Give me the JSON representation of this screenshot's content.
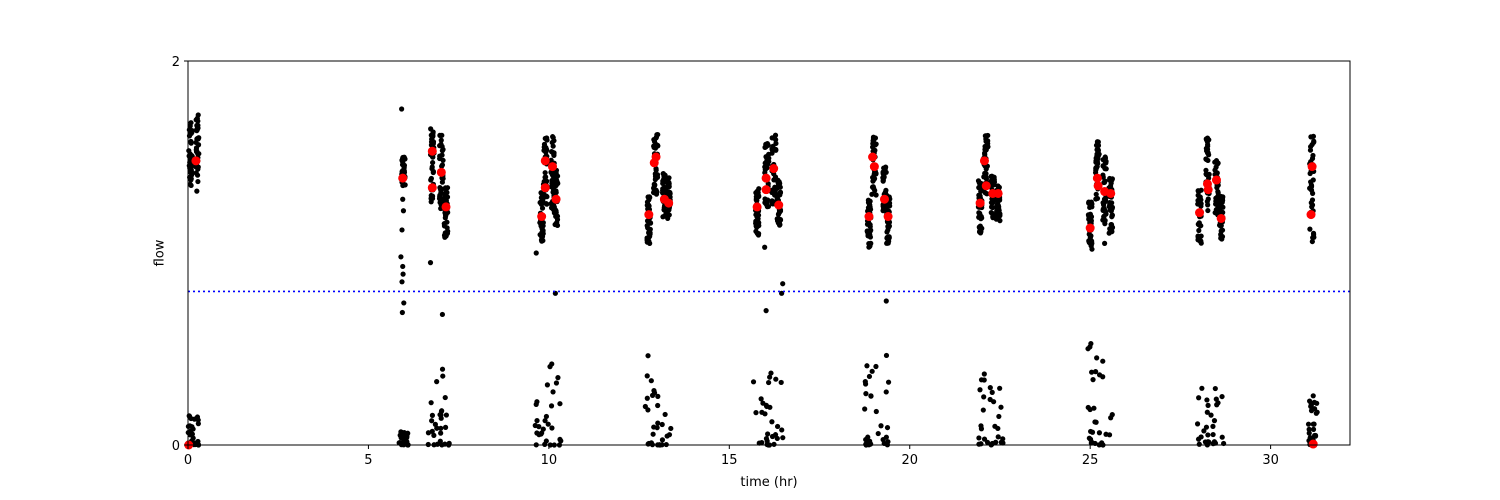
{
  "chart_data": {
    "type": "scatter",
    "xlabel": "time (hr)",
    "ylabel": "flow",
    "xlim": [
      0,
      32.2
    ],
    "ylim": [
      0,
      2
    ],
    "x_ticks": [
      0,
      5,
      10,
      15,
      20,
      25,
      30
    ],
    "y_ticks": [
      0,
      2
    ],
    "grid": false,
    "colors": {
      "raw": "#000000",
      "highlight": "#ff0000",
      "threshold": "#0000ff"
    },
    "threshold": {
      "y": 0.8,
      "style": "dotted"
    },
    "series": [
      {
        "kind": "raw",
        "clusters": [
          {
            "x": [
              0.02,
              0.12
            ],
            "y": [
              1.35,
              1.68
            ]
          },
          {
            "x": [
              0.22,
              0.3
            ],
            "y": [
              1.32,
              1.72
            ]
          },
          {
            "x": [
              5.92,
              6.02
            ],
            "y": [
              1.35,
              1.5
            ]
          },
          {
            "x": [
              6.72,
              6.82
            ],
            "y": [
              1.25,
              1.65
            ]
          },
          {
            "x": [
              6.97,
              7.07
            ],
            "y": [
              1.23,
              1.62
            ]
          },
          {
            "x": [
              7.1,
              7.2
            ],
            "y": [
              1.08,
              1.35
            ]
          },
          {
            "x": [
              9.75,
              9.85
            ],
            "y": [
              1.06,
              1.32
            ]
          },
          {
            "x": [
              9.85,
              9.95
            ],
            "y": [
              1.25,
              1.6
            ]
          },
          {
            "x": [
              10.05,
              10.15
            ],
            "y": [
              1.2,
              1.62
            ]
          },
          {
            "x": [
              10.15,
              10.25
            ],
            "y": [
              1.14,
              1.45
            ]
          },
          {
            "x": [
              12.72,
              12.82
            ],
            "y": [
              1.05,
              1.32
            ]
          },
          {
            "x": [
              12.9,
              13.02
            ],
            "y": [
              1.3,
              1.63
            ]
          },
          {
            "x": [
              13.15,
              13.25
            ],
            "y": [
              1.18,
              1.42
            ]
          },
          {
            "x": [
              13.27,
              13.37
            ],
            "y": [
              1.18,
              1.4
            ]
          },
          {
            "x": [
              15.72,
              15.82
            ],
            "y": [
              1.08,
              1.35
            ]
          },
          {
            "x": [
              15.98,
              16.1
            ],
            "y": [
              1.24,
              1.58
            ]
          },
          {
            "x": [
              16.18,
              16.3
            ],
            "y": [
              1.25,
              1.62
            ]
          },
          {
            "x": [
              16.32,
              16.42
            ],
            "y": [
              1.13,
              1.38
            ]
          },
          {
            "x": [
              18.82,
              18.92
            ],
            "y": [
              1.03,
              1.3
            ]
          },
          {
            "x": [
              18.95,
              19.07
            ],
            "y": [
              1.3,
              1.63
            ]
          },
          {
            "x": [
              19.25,
              19.35
            ],
            "y": [
              1.22,
              1.45
            ]
          },
          {
            "x": [
              19.35,
              19.45
            ],
            "y": [
              1.05,
              1.3
            ]
          },
          {
            "x": [
              21.9,
              22.0
            ],
            "y": [
              1.1,
              1.38
            ]
          },
          {
            "x": [
              22.05,
              22.17
            ],
            "y": [
              1.3,
              1.63
            ]
          },
          {
            "x": [
              22.25,
              22.35
            ],
            "y": [
              1.18,
              1.43
            ]
          },
          {
            "x": [
              22.4,
              22.5
            ],
            "y": [
              1.15,
              1.35
            ]
          },
          {
            "x": [
              24.95,
              25.05
            ],
            "y": [
              1.03,
              1.3
            ]
          },
          {
            "x": [
              25.15,
              25.25
            ],
            "y": [
              1.28,
              1.58
            ]
          },
          {
            "x": [
              25.35,
              25.45
            ],
            "y": [
              1.15,
              1.5
            ]
          },
          {
            "x": [
              25.52,
              25.62
            ],
            "y": [
              1.1,
              1.4
            ]
          },
          {
            "x": [
              27.98,
              28.08
            ],
            "y": [
              1.05,
              1.33
            ]
          },
          {
            "x": [
              28.2,
              28.3
            ],
            "y": [
              1.22,
              1.6
            ]
          },
          {
            "x": [
              28.45,
              28.55
            ],
            "y": [
              1.18,
              1.52
            ]
          },
          {
            "x": [
              28.58,
              28.68
            ],
            "y": [
              1.05,
              1.3
            ]
          },
          {
            "x": [
              31.08,
              31.2
            ],
            "y": [
              1.05,
              1.63
            ]
          }
        ],
        "singles": [
          {
            "x": 5.92,
            "y": 1.75
          },
          {
            "x": 5.95,
            "y": 1.28
          },
          {
            "x": 5.97,
            "y": 1.22
          },
          {
            "x": 5.93,
            "y": 1.12
          },
          {
            "x": 5.9,
            "y": 0.98
          },
          {
            "x": 5.95,
            "y": 0.93
          },
          {
            "x": 5.96,
            "y": 0.89
          },
          {
            "x": 5.93,
            "y": 0.85
          },
          {
            "x": 5.98,
            "y": 0.74
          },
          {
            "x": 5.94,
            "y": 0.69
          },
          {
            "x": 6.72,
            "y": 0.95
          },
          {
            "x": 7.05,
            "y": 0.68
          },
          {
            "x": 9.65,
            "y": 1.0
          },
          {
            "x": 10.18,
            "y": 0.79
          },
          {
            "x": 15.98,
            "y": 1.03
          },
          {
            "x": 16.48,
            "y": 0.84
          },
          {
            "x": 16.45,
            "y": 0.79
          },
          {
            "x": 16.02,
            "y": 0.7
          },
          {
            "x": 19.35,
            "y": 0.75
          },
          {
            "x": 18.92,
            "y": 1.05
          },
          {
            "x": 25.05,
            "y": 1.02
          },
          {
            "x": 25.4,
            "y": 1.05
          }
        ],
        "low_clusters": [
          {
            "x": [
              0.0,
              0.3
            ],
            "y": [
              0.0,
              0.18
            ]
          },
          {
            "x": [
              5.85,
              6.1
            ],
            "y": [
              0.0,
              0.07
            ]
          },
          {
            "x": [
              6.65,
              7.25
            ],
            "y": [
              0.0,
              0.42
            ]
          },
          {
            "x": [
              9.6,
              10.35
            ],
            "y": [
              0.0,
              0.43
            ]
          },
          {
            "x": [
              12.6,
              13.4
            ],
            "y": [
              0.0,
              0.47
            ]
          },
          {
            "x": [
              15.65,
              16.5
            ],
            "y": [
              0.0,
              0.4
            ]
          },
          {
            "x": [
              18.75,
              19.45
            ],
            "y": [
              0.0,
              0.47
            ]
          },
          {
            "x": [
              21.85,
              22.6
            ],
            "y": [
              0.0,
              0.38
            ]
          },
          {
            "x": [
              24.9,
              25.65
            ],
            "y": [
              0.0,
              0.58
            ]
          },
          {
            "x": [
              27.95,
              28.7
            ],
            "y": [
              0.0,
              0.32
            ]
          },
          {
            "x": [
              31.05,
              31.3
            ],
            "y": [
              0.0,
              0.26
            ]
          }
        ]
      },
      {
        "kind": "highlight",
        "x": [
          0.02,
          0.22,
          5.95,
          6.77,
          6.77,
          7.02,
          7.15,
          9.8,
          9.9,
          9.9,
          10.1,
          10.2,
          12.77,
          12.92,
          12.97,
          13.2,
          13.32,
          15.77,
          16.02,
          16.02,
          16.23,
          16.37,
          18.87,
          18.97,
          19.02,
          19.3,
          19.4,
          21.95,
          22.07,
          22.12,
          22.3,
          22.45,
          25.0,
          25.2,
          25.22,
          25.4,
          25.57,
          28.03,
          28.25,
          28.27,
          28.5,
          28.63,
          31.12,
          31.15
        ],
        "y": [
          0.0,
          1.48,
          1.39,
          1.53,
          1.34,
          1.42,
          1.24,
          1.19,
          1.48,
          1.34,
          1.45,
          1.28,
          1.2,
          1.47,
          1.5,
          1.28,
          1.26,
          1.24,
          1.33,
          1.39,
          1.44,
          1.25,
          1.19,
          1.5,
          1.45,
          1.28,
          1.19,
          1.26,
          1.48,
          1.35,
          1.31,
          1.31,
          1.13,
          1.39,
          1.35,
          1.32,
          1.31,
          1.21,
          1.36,
          1.33,
          1.38,
          1.18,
          1.2,
          1.45
        ]
      }
    ]
  }
}
